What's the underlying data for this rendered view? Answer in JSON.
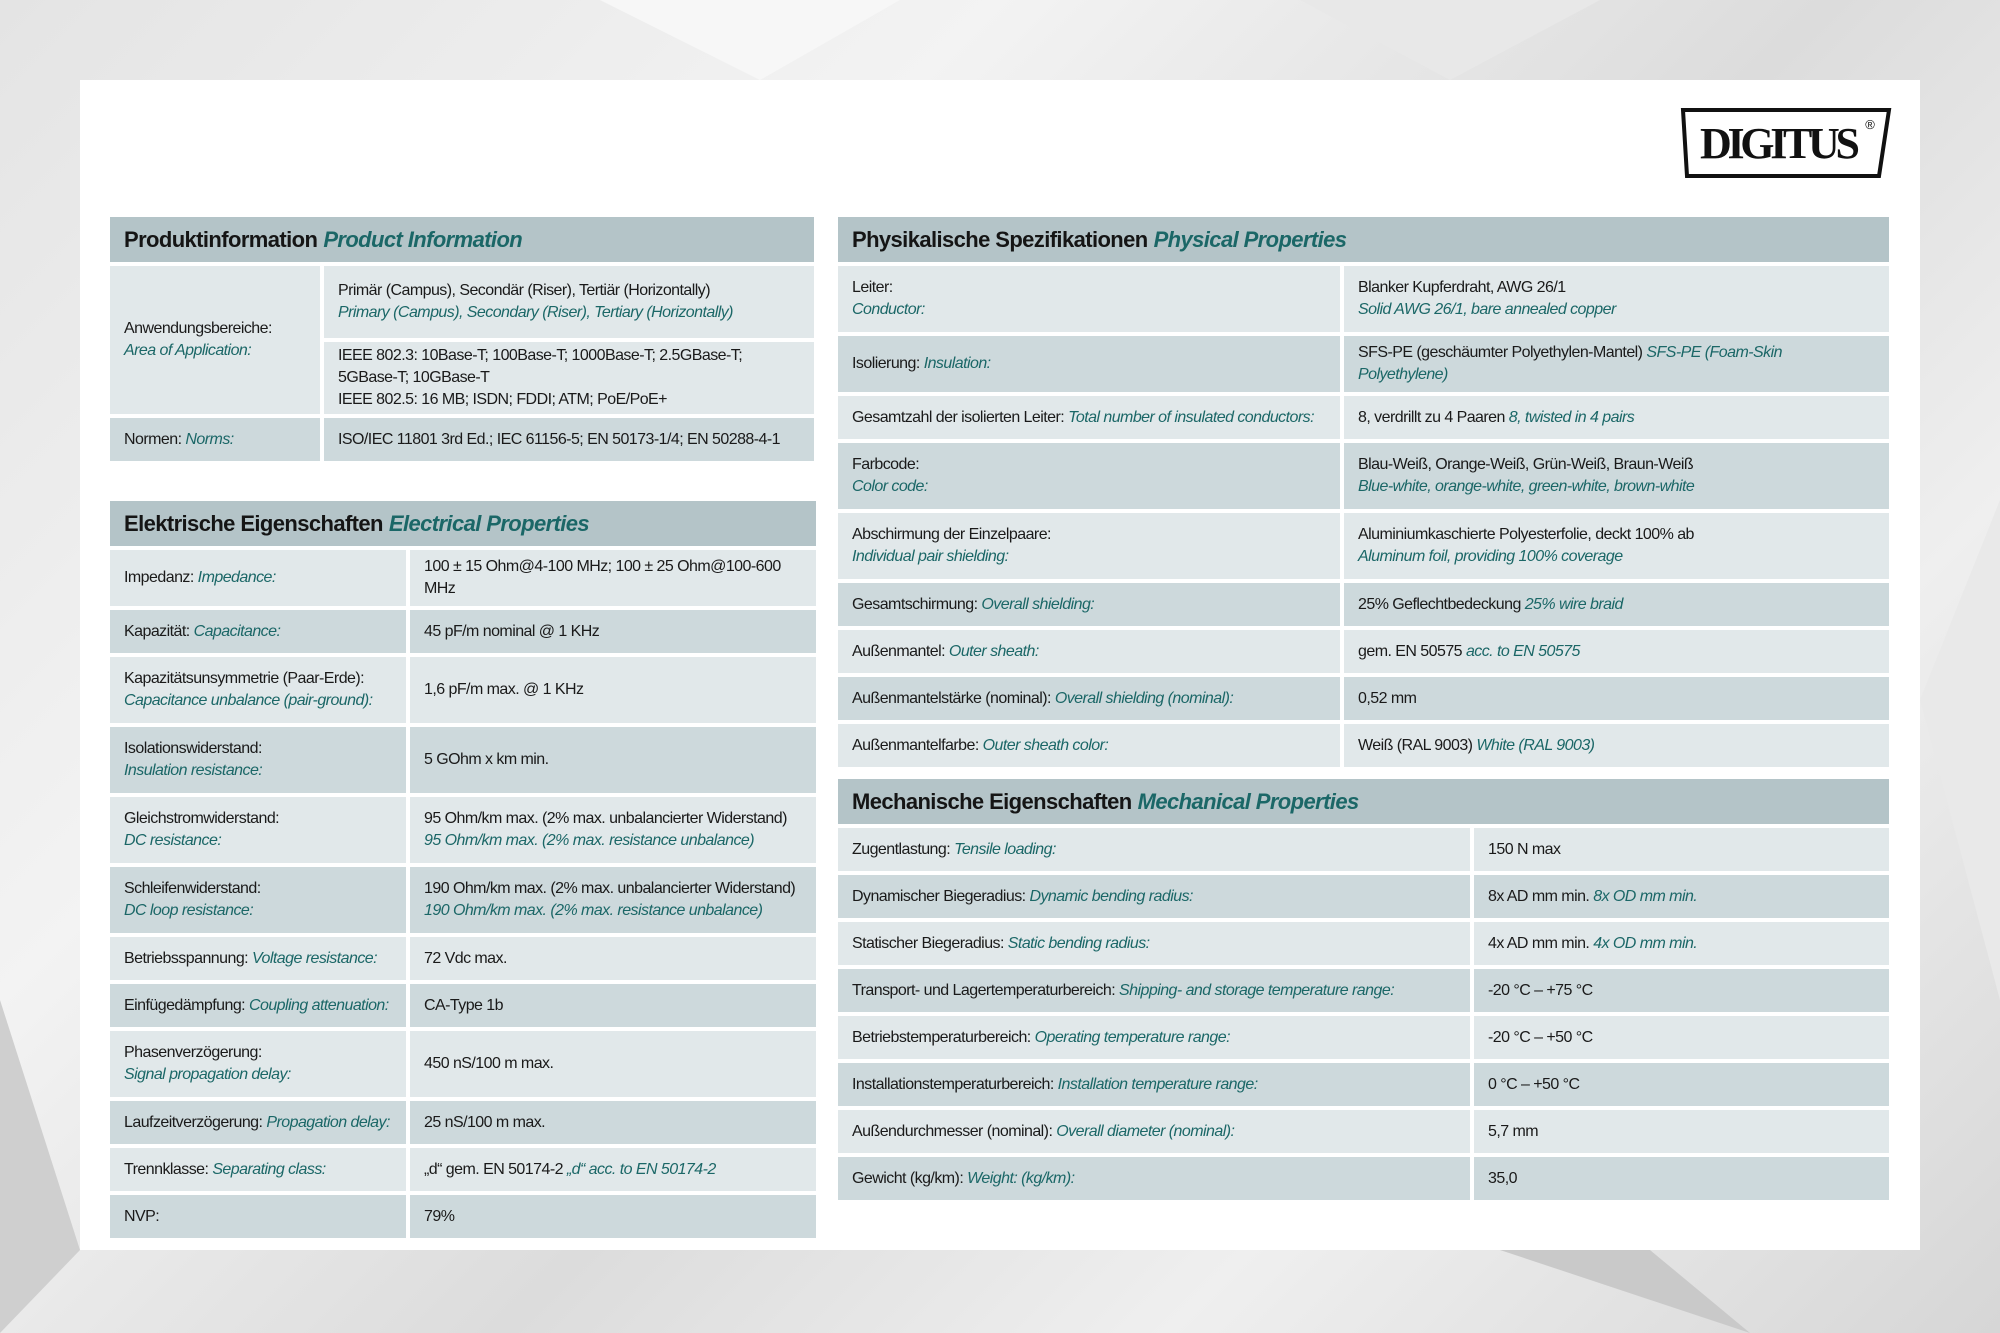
{
  "brand": {
    "logo_text": "DIGITUS",
    "registered": "®"
  },
  "colors": {
    "header_bg": "#b4c4c8",
    "row_dark": "#cdd9dc",
    "row_light": "#e1e8ea",
    "accent_teal": "#1b6767"
  },
  "sections": {
    "product": {
      "title_de": "Produktinformation",
      "title_en": "Product Information",
      "rows": [
        {
          "label_de": "Anwendungsbereiche:",
          "label_en": "Area of Application:",
          "stacked": true,
          "values": [
            {
              "de": [
                "Primär (Campus), Secondär (Riser), Tertiär (Horizontally)"
              ],
              "en": "Primary (Campus), Secondary (Riser), Tertiary (Horizontally)",
              "stacked": true
            },
            {
              "de": [
                "IEEE 802.3: 10Base-T; 100Base-T; 1000Base-T; 2.5GBase-T;",
                "5GBase-T; 10GBase-T",
                "IEEE 802.5: 16 MB; ISDN; FDDI; ATM; PoE/PoE+"
              ]
            }
          ]
        },
        {
          "label_de": "Normen:",
          "label_en": "Norms:",
          "values": [
            {
              "de": [
                "ISO/IEC 11801 3rd Ed.; IEC 61156-5; EN 50173-1/4; EN 50288-4-1"
              ]
            }
          ]
        }
      ]
    },
    "electrical": {
      "title_de": "Elektrische Eigenschaften",
      "title_en": "Electrical Properties",
      "rows": [
        {
          "label_de": "Impedanz:",
          "label_en": "Impedance:",
          "values": [
            {
              "de": [
                "100 ± 15 Ohm@4-100 MHz; 100 ± 25 Ohm@100-600 MHz"
              ]
            }
          ]
        },
        {
          "label_de": "Kapazität:",
          "label_en": "Capacitance:",
          "values": [
            {
              "de": [
                "45 pF/m nominal @ 1 KHz"
              ]
            }
          ]
        },
        {
          "label_de": "Kapazitätsunsymmetrie (Paar-Erde):",
          "label_en": "Capacitance unbalance (pair-ground):",
          "stacked": true,
          "values": [
            {
              "de": [
                "1,6 pF/m max. @ 1 KHz"
              ]
            }
          ]
        },
        {
          "label_de": "Isolationswiderstand:",
          "label_en": "Insulation resistance:",
          "stacked": true,
          "values": [
            {
              "de": [
                "5 GOhm x km min."
              ]
            }
          ]
        },
        {
          "label_de": "Gleichstromwiderstand:",
          "label_en": "DC resistance:",
          "stacked": true,
          "values": [
            {
              "de": [
                "95 Ohm/km max. (2% max. unbalancierter Widerstand)"
              ],
              "en": "95 Ohm/km max. (2% max. resistance unbalance)",
              "stacked": true
            }
          ]
        },
        {
          "label_de": "Schleifenwiderstand:",
          "label_en": "DC loop resistance:",
          "stacked": true,
          "values": [
            {
              "de": [
                "190 Ohm/km max. (2% max. unbalancierter Widerstand)"
              ],
              "en": "190 Ohm/km max. (2% max. resistance unbalance)",
              "stacked": true
            }
          ]
        },
        {
          "label_de": "Betriebsspannung:",
          "label_en": "Voltage resistance:",
          "values": [
            {
              "de": [
                "72 Vdc max."
              ]
            }
          ]
        },
        {
          "label_de": "Einfügedämpfung:",
          "label_en": "Coupling attenuation:",
          "values": [
            {
              "de": [
                "CA-Type 1b"
              ]
            }
          ]
        },
        {
          "label_de": "Phasenverzögerung:",
          "label_en": "Signal propagation delay:",
          "stacked": true,
          "values": [
            {
              "de": [
                "450 nS/100 m max."
              ]
            }
          ]
        },
        {
          "label_de": "Laufzeitverzögerung:",
          "label_en": "Propagation delay:",
          "values": [
            {
              "de": [
                "25 nS/100 m max."
              ]
            }
          ]
        },
        {
          "label_de": "Trennklasse:",
          "label_en": "Separating class:",
          "values": [
            {
              "de": [
                "„d“ gem. EN 50174-2"
              ],
              "en": "„d“ acc. to EN 50174-2"
            }
          ]
        },
        {
          "label_de": "NVP:",
          "label_en": "",
          "values": [
            {
              "de": [
                "79%"
              ]
            }
          ]
        }
      ]
    },
    "physical": {
      "title_de": "Physikalische Spezifikationen",
      "title_en": "Physical Properties",
      "rows": [
        {
          "label_de": "Leiter:",
          "label_en": "Conductor:",
          "stacked": true,
          "values": [
            {
              "de": [
                "Blanker Kupferdraht, AWG 26/1"
              ],
              "en": "Solid AWG 26/1, bare annealed copper",
              "stacked": true
            }
          ]
        },
        {
          "label_de": "Isolierung:",
          "label_en": "Insulation:",
          "values": [
            {
              "de": [
                "SFS-PE (geschäumter Polyethylen-Mantel)"
              ],
              "en": "SFS-PE (Foam-Skin Polyethylene)"
            }
          ]
        },
        {
          "label_de": "Gesamtzahl der isolierten Leiter:",
          "label_en": "Total number of insulated conductors:",
          "values": [
            {
              "de": [
                "8, verdrillt zu 4 Paaren"
              ],
              "en": "8, twisted in 4 pairs"
            }
          ]
        },
        {
          "label_de": "Farbcode:",
          "label_en": "Color code:",
          "stacked": true,
          "values": [
            {
              "de": [
                "Blau-Weiß, Orange-Weiß, Grün-Weiß, Braun-Weiß"
              ],
              "en": "Blue-white, orange-white, green-white, brown-white",
              "stacked": true
            }
          ]
        },
        {
          "label_de": "Abschirmung der Einzelpaare:",
          "label_en": "Individual pair shielding:",
          "stacked": true,
          "values": [
            {
              "de": [
                "Aluminiumkaschierte Polyesterfolie, deckt 100% ab"
              ],
              "en": "Aluminum foil, providing 100% coverage",
              "stacked": true
            }
          ]
        },
        {
          "label_de": "Gesamtschirmung:",
          "label_en": "Overall shielding:",
          "values": [
            {
              "de": [
                "25% Geflechtbedeckung"
              ],
              "en": "25% wire braid"
            }
          ]
        },
        {
          "label_de": "Außenmantel:",
          "label_en": "Outer sheath:",
          "values": [
            {
              "de": [
                "gem. EN 50575"
              ],
              "en": "acc. to EN 50575"
            }
          ]
        },
        {
          "label_de": "Außenmantelstärke (nominal):",
          "label_en": "Overall shielding (nominal):",
          "values": [
            {
              "de": [
                "0,52 mm"
              ]
            }
          ]
        },
        {
          "label_de": "Außenmantelfarbe:",
          "label_en": "Outer sheath color:",
          "values": [
            {
              "de": [
                "Weiß (RAL 9003)"
              ],
              "en": "White (RAL 9003)"
            }
          ]
        }
      ]
    },
    "mechanical": {
      "title_de": "Mechanische Eigenschaften",
      "title_en": "Mechanical Properties",
      "rows": [
        {
          "label_de": "Zugentlastung:",
          "label_en": "Tensile loading:",
          "values": [
            {
              "de": [
                "150 N max"
              ]
            }
          ]
        },
        {
          "label_de": "Dynamischer Biegeradius:",
          "label_en": "Dynamic bending radius:",
          "values": [
            {
              "de": [
                "8x AD mm min."
              ],
              "en": "8x OD mm min."
            }
          ]
        },
        {
          "label_de": "Statischer Biegeradius:",
          "label_en": "Static bending radius:",
          "values": [
            {
              "de": [
                "4x AD mm min."
              ],
              "en": "4x OD mm min."
            }
          ]
        },
        {
          "label_de": "Transport- und Lagertemperaturbereich:",
          "label_en": "Shipping- and storage temperature range:",
          "values": [
            {
              "de": [
                "-20 °C – +75 °C"
              ]
            }
          ]
        },
        {
          "label_de": "Betriebstemperaturbereich:",
          "label_en": "Operating temperature range:",
          "values": [
            {
              "de": [
                "-20 °C – +50 °C"
              ]
            }
          ]
        },
        {
          "label_de": "Installationstemperaturbereich:",
          "label_en": "Installation temperature range:",
          "values": [
            {
              "de": [
                "0 °C – +50 °C"
              ]
            }
          ]
        },
        {
          "label_de": "Außendurchmesser (nominal):",
          "label_en": "Overall diameter (nominal):",
          "values": [
            {
              "de": [
                "5,7 mm"
              ]
            }
          ]
        },
        {
          "label_de": "Gewicht (kg/km):",
          "label_en": "Weight: (kg/km):",
          "values": [
            {
              "de": [
                "35,0"
              ]
            }
          ]
        }
      ]
    }
  }
}
